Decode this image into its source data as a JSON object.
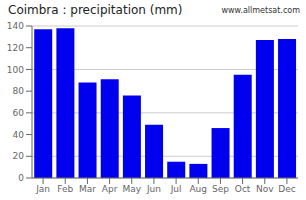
{
  "chart_data": {
    "type": "bar",
    "title": "Coimbra : precipitation (mm)",
    "categories": [
      "Jan",
      "Feb",
      "Mar",
      "Apr",
      "May",
      "Jun",
      "Jul",
      "Aug",
      "Sep",
      "Oct",
      "Nov",
      "Dec"
    ],
    "values": [
      137,
      138,
      88,
      91,
      76,
      49,
      15,
      13,
      46,
      95,
      127,
      128
    ],
    "color": "#0000ee",
    "ylim": [
      0,
      140
    ],
    "yticks": [
      0,
      20,
      40,
      60,
      80,
      100,
      120,
      140
    ],
    "grid": true,
    "annotations": [
      "www.allmetsat.com"
    ]
  }
}
